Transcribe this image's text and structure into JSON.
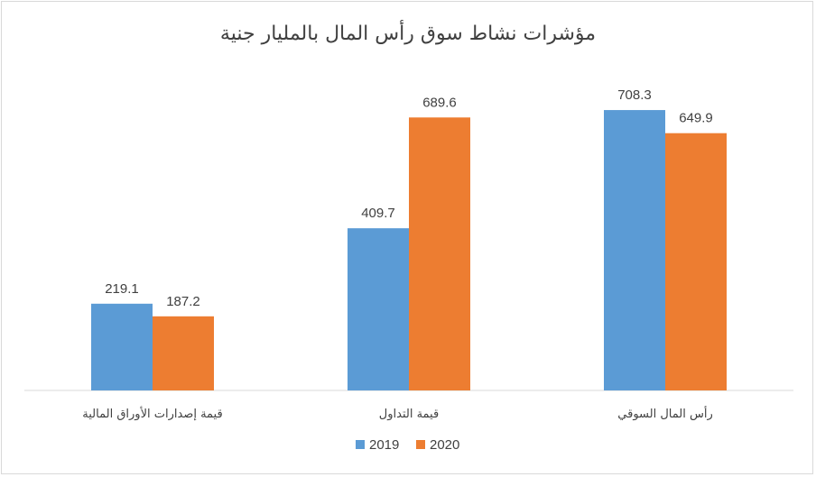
{
  "chart_data": {
    "type": "bar",
    "title": "مؤشرات نشاط سوق رأس المال بالمليار جنية",
    "categories": [
      "قيمة إصدارات الأوراق المالية",
      "قيمة التداول",
      "رأس المال السوقي"
    ],
    "series": [
      {
        "name": "2019",
        "values": [
          219.1,
          409.7,
          708.3
        ],
        "color": "#5b9bd5"
      },
      {
        "name": "2020",
        "values": [
          187.2,
          689.6,
          649.9
        ],
        "color": "#ed7d31"
      }
    ],
    "value_labels": {
      "2019": [
        "219.1",
        "409.7",
        "708.3"
      ],
      "2020": [
        "187.2",
        "689.6",
        "649.9"
      ]
    },
    "ylim": [
      0,
      800
    ],
    "grid": false,
    "legend_position": "bottom",
    "axis_color": "#d9d9d9"
  }
}
